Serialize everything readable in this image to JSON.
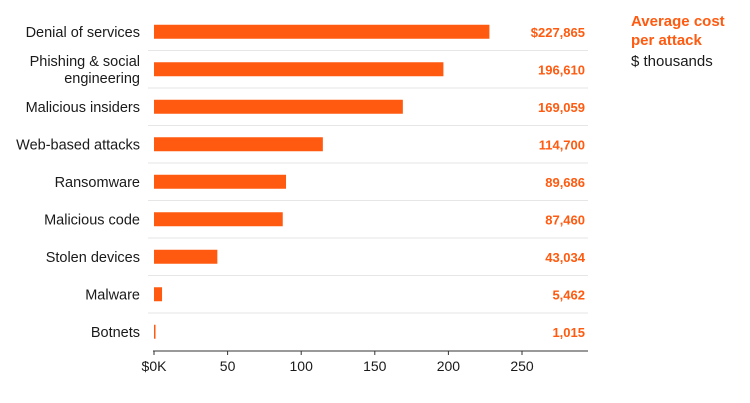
{
  "chart_data": {
    "type": "bar",
    "orientation": "horizontal",
    "title": [
      "Average cost",
      "per attack"
    ],
    "subtitle": "$ thousands",
    "categories": [
      [
        "Denial of services"
      ],
      [
        "Phishing & social",
        "engineering"
      ],
      [
        "Malicious insiders"
      ],
      [
        "Web-based attacks"
      ],
      [
        "Ransomware"
      ],
      [
        "Malicious code"
      ],
      [
        "Stolen devices"
      ],
      [
        "Malware"
      ],
      [
        "Botnets"
      ]
    ],
    "values": [
      227.865,
      196.61,
      169.059,
      114.7,
      89.686,
      87.46,
      43.034,
      5.462,
      1.015
    ],
    "value_labels": [
      "$227,865",
      "196,610",
      "169,059",
      "114,700",
      "89,686",
      "87,460",
      "43,034",
      "5,462",
      "1,015"
    ],
    "x_ticks": [
      0,
      50,
      100,
      150,
      200,
      250
    ],
    "x_tick_labels": [
      "$0K",
      "50",
      "100",
      "150",
      "200",
      "250"
    ],
    "xlim": [
      0,
      250
    ],
    "grid": "horizontal row separators",
    "colors": {
      "bar": "#ff5a0f",
      "value_label": "#ff5a0f",
      "title": "#ff5a0f",
      "separator": "#e6e6e6",
      "axis": "#333333"
    }
  }
}
